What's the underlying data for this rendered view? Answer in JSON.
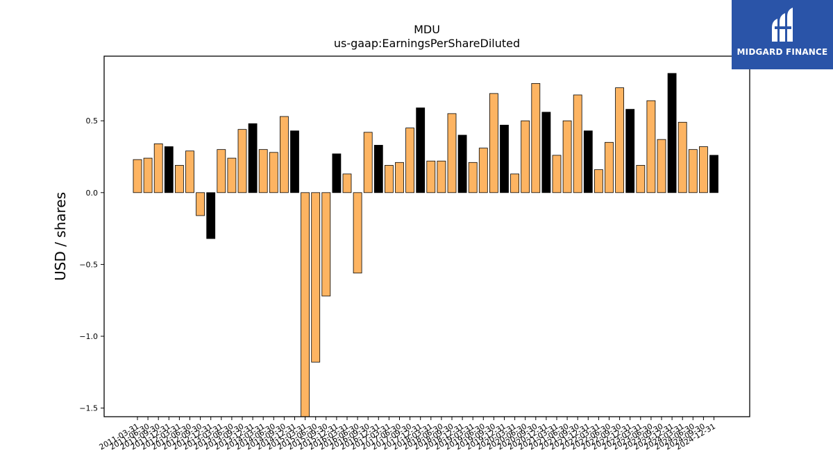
{
  "chart_data": {
    "type": "bar",
    "title": "MDU",
    "subtitle": "us-gaap:EarningsPerShareDiluted",
    "ylabel": "USD / shares",
    "xlabel": "",
    "ylim": [
      -1.56,
      0.95
    ],
    "yticks": [
      -1.5,
      -1.0,
      -0.5,
      0.0,
      0.5
    ],
    "yticklabels": [
      "−1.5",
      "−1.0",
      "−0.5",
      "0.0",
      "0.5"
    ],
    "colors": {
      "quarter": "#FDB462",
      "annual": "#000000",
      "edge": "#000000"
    },
    "categories": [
      "2011-03-31",
      "2011-06-30",
      "2011-09-30",
      "2011-12-31",
      "2012-03-31",
      "2012-06-30",
      "2012-09-30",
      "2012-12-31",
      "2013-03-31",
      "2013-06-30",
      "2013-09-30",
      "2013-12-31",
      "2014-03-31",
      "2014-06-30",
      "2014-09-30",
      "2014-12-31",
      "2015-03-31",
      "2015-06-30",
      "2015-09-30",
      "2015-12-31",
      "2016-03-31",
      "2016-06-30",
      "2016-09-30",
      "2016-12-31",
      "2017-03-31",
      "2017-06-30",
      "2017-09-30",
      "2017-12-31",
      "2018-03-31",
      "2018-06-30",
      "2018-09-30",
      "2018-12-31",
      "2019-03-31",
      "2019-06-30",
      "2019-09-30",
      "2019-12-31",
      "2020-03-31",
      "2020-06-30",
      "2020-09-30",
      "2020-12-31",
      "2021-03-31",
      "2021-06-30",
      "2021-09-30",
      "2021-12-31",
      "2022-03-31",
      "2022-06-30",
      "2022-09-30",
      "2022-12-31",
      "2023-03-31",
      "2023-06-30",
      "2023-09-30",
      "2023-12-31",
      "2024-03-31",
      "2024-06-30",
      "2024-09-30",
      "2024-12-31"
    ],
    "values": [
      0.23,
      0.24,
      0.34,
      0.32,
      0.19,
      0.29,
      -0.16,
      -0.32,
      0.3,
      0.24,
      0.44,
      0.48,
      0.3,
      0.28,
      0.53,
      0.43,
      -1.57,
      -1.18,
      -0.72,
      0.27,
      0.13,
      -0.56,
      0.42,
      0.33,
      0.19,
      0.21,
      0.45,
      0.59,
      0.22,
      0.22,
      0.55,
      0.4,
      0.21,
      0.31,
      0.69,
      0.47,
      0.13,
      0.5,
      0.76,
      0.56,
      0.26,
      0.5,
      0.68,
      0.43,
      0.16,
      0.35,
      0.73,
      0.58,
      0.19,
      0.64,
      0.37,
      0.83,
      0.49,
      0.3,
      0.32,
      0.26
    ],
    "annual": [
      false,
      false,
      false,
      true,
      false,
      false,
      false,
      true,
      false,
      false,
      false,
      true,
      false,
      false,
      false,
      true,
      false,
      false,
      false,
      true,
      false,
      false,
      false,
      true,
      false,
      false,
      false,
      true,
      false,
      false,
      false,
      true,
      false,
      false,
      false,
      true,
      false,
      false,
      false,
      true,
      false,
      false,
      false,
      true,
      false,
      false,
      false,
      true,
      false,
      false,
      false,
      true,
      false,
      false,
      false,
      true
    ],
    "grid": false,
    "legend": "none"
  },
  "logo": {
    "text": "MIDGARD FINANCE",
    "bg": "#2a54a8"
  }
}
